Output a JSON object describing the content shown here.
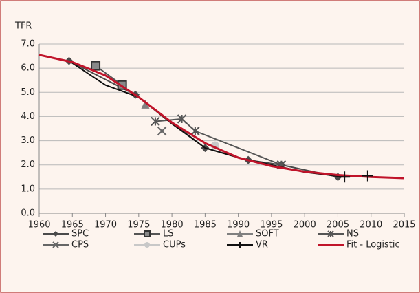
{
  "chart_data": {
    "type": "line",
    "y_label": "TFR",
    "xlim": [
      1960,
      2015
    ],
    "xticks": [
      1960,
      1965,
      1970,
      1975,
      1980,
      1985,
      1990,
      1995,
      2000,
      2005,
      2010,
      2015
    ],
    "ylim": [
      0,
      7
    ],
    "yticks": [
      {
        "value": 0,
        "label": "0.0"
      },
      {
        "value": 1,
        "label": "1.0"
      },
      {
        "value": 2,
        "label": "2.0"
      },
      {
        "value": 3,
        "label": "3.0"
      },
      {
        "value": 4,
        "label": "4.0"
      },
      {
        "value": 5,
        "label": "5.0"
      },
      {
        "value": 6,
        "label": "6.0"
      },
      {
        "value": 7,
        "label": "7.0"
      }
    ],
    "grid": true,
    "series": [
      {
        "name": "SPC",
        "color": "#4a4a4a",
        "marker": "diamond",
        "x": [
          1964.5,
          1974.5,
          1985,
          1991.5,
          1996.5,
          2005
        ],
        "values": [
          6.3,
          4.9,
          2.7,
          2.2,
          2.0,
          1.5
        ]
      },
      {
        "name": "LS",
        "color": "#555555",
        "marker": "square",
        "x": [
          1968.5,
          1972.5
        ],
        "values": [
          6.1,
          5.3
        ]
      },
      {
        "name": "SOFT",
        "color": "#808080",
        "marker": "triangle",
        "x": [
          1976
        ],
        "values": [
          4.5
        ]
      },
      {
        "name": "NS",
        "color": "#555555",
        "marker": "star",
        "x": [
          1977.5,
          1981.5,
          1983.5,
          1996.5
        ],
        "values": [
          3.8,
          3.9,
          3.4,
          2.0
        ]
      },
      {
        "name": "CPS",
        "color": "#666666",
        "marker": "x",
        "x": [
          1978.5
        ],
        "values": [
          3.4
        ]
      },
      {
        "name": "CUPs",
        "color": "#c8c8c8",
        "marker": "circle",
        "x": [
          1986.5
        ],
        "values": [
          2.8
        ]
      },
      {
        "name": "VR",
        "color": "#111111",
        "marker": "plus",
        "x": [
          1964.5,
          1970,
          1975,
          1980,
          1985,
          1990,
          1995,
          2000,
          2006,
          2009.5
        ],
        "values": [
          6.3,
          5.3,
          4.8,
          3.7,
          2.7,
          2.3,
          2.0,
          1.7,
          1.5,
          1.55
        ]
      },
      {
        "name": "Fit - Logistic",
        "color": "#c0142a",
        "marker": "none",
        "x": [
          1960,
          1965,
          1970,
          1975,
          1980,
          1985,
          1990,
          1995,
          2000,
          2005,
          2010,
          2015
        ],
        "values": [
          6.55,
          6.25,
          5.7,
          4.8,
          3.75,
          2.9,
          2.3,
          1.95,
          1.72,
          1.58,
          1.5,
          1.45
        ]
      }
    ]
  }
}
